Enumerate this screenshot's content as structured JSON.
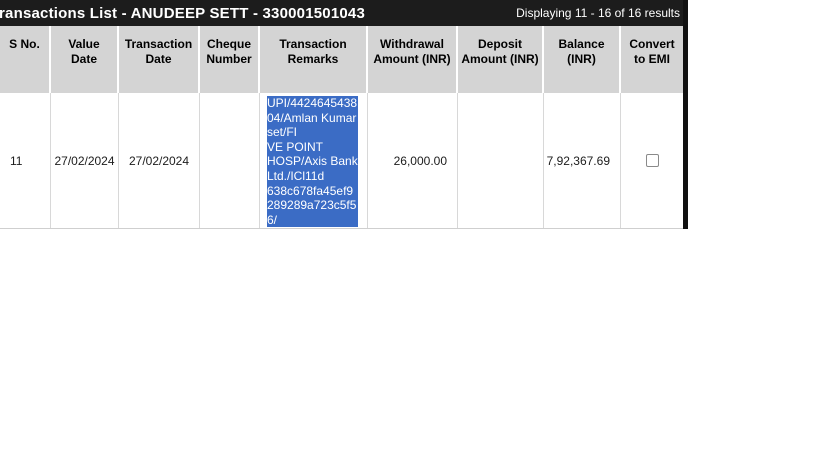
{
  "topbar": {
    "title": "ransactions List - ANUDEEP SETT - 330001501043",
    "displaying": "Displaying 11 - 16 of 16 results"
  },
  "table": {
    "columns": [
      "S No.",
      "Value Date",
      "Transaction Date",
      "Cheque Number",
      "Transaction Remarks",
      "Withdrawal Amount (INR)",
      "Deposit Amount (INR)",
      "Balance (INR)",
      "Convert to EMI"
    ],
    "row": {
      "s_no": "11",
      "value_date": "27/02/2024",
      "transaction_date": "27/02/2024",
      "cheque_number": "",
      "transaction_remarks": "UPI/4424645438\n04/Amlan Kumar\nset/FI \nVE POINT\nHOSP/Axis Bank\nLtd./ICl11d \n638c678fa45ef9\n289289a723c5f5\n6/",
      "withdrawal_amount": "26,000.00",
      "deposit_amount": "",
      "balance": "7,92,367.69",
      "convert_to_emi_checked": false
    }
  },
  "colors": {
    "topbar_bg": "#1c1c1c",
    "header_bg": "#d4d4d4",
    "selection_bg": "#3b6cc5",
    "selection_text": "#ffffff"
  }
}
